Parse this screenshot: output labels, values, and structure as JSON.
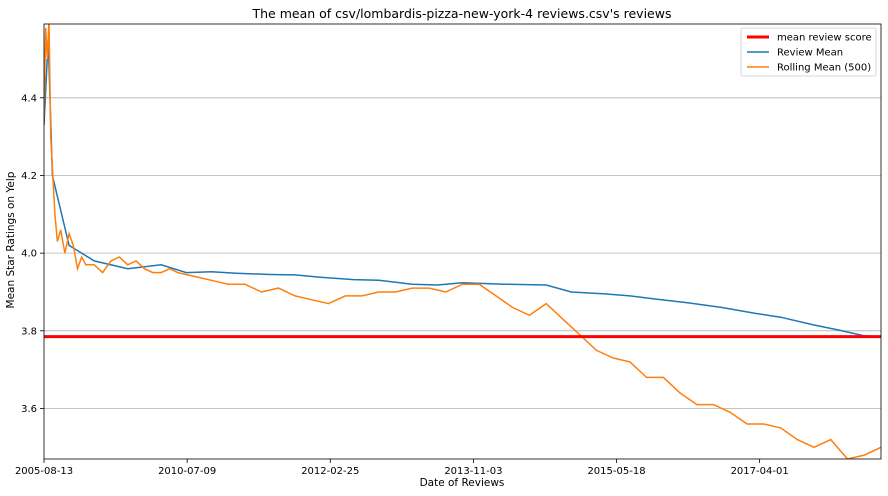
{
  "chart_data": {
    "type": "line",
    "title": "The mean of csv/lombardis-pizza-new-york-4 reviews.csv's reviews",
    "xlabel": "Date of Reviews",
    "ylabel": "Mean Star Ratings on Yelp",
    "x_tick_labels": [
      "2005-08-13",
      "2010-07-09",
      "2012-02-25",
      "2013-11-03",
      "2015-05-18",
      "2017-04-01"
    ],
    "y_ticks": [
      3.6,
      3.8,
      4.0,
      4.2,
      4.4
    ],
    "ylim": [
      3.47,
      4.59
    ],
    "grid": "horizontal",
    "legend_position": "top-right",
    "mean_review_score": 3.785,
    "series": [
      {
        "name": "mean review score",
        "color": "#ff0000",
        "style": "hline",
        "value": 3.785
      },
      {
        "name": "Review Mean",
        "color": "#1f77b4",
        "x": [
          0.0,
          0.005,
          0.01,
          0.03,
          0.06,
          0.1,
          0.14,
          0.17,
          0.2,
          0.23,
          0.27,
          0.3,
          0.33,
          0.37,
          0.4,
          0.44,
          0.47,
          0.5,
          0.55,
          0.6,
          0.63,
          0.67,
          0.7,
          0.73,
          0.77,
          0.81,
          0.85,
          0.88,
          0.92,
          0.95,
          0.98,
          1.0
        ],
        "values": [
          4.33,
          4.55,
          4.2,
          4.02,
          3.98,
          3.96,
          3.97,
          3.95,
          3.952,
          3.948,
          3.945,
          3.944,
          3.938,
          3.932,
          3.93,
          3.92,
          3.918,
          3.924,
          3.92,
          3.918,
          3.9,
          3.895,
          3.89,
          3.882,
          3.872,
          3.86,
          3.845,
          3.835,
          3.815,
          3.802,
          3.787,
          3.785
        ]
      },
      {
        "name": "Rolling Mean (500)",
        "color": "#ff7f0e",
        "x": [
          0.0,
          0.002,
          0.004,
          0.006,
          0.008,
          0.01,
          0.013,
          0.016,
          0.02,
          0.025,
          0.03,
          0.035,
          0.04,
          0.045,
          0.05,
          0.06,
          0.07,
          0.08,
          0.09,
          0.1,
          0.11,
          0.12,
          0.13,
          0.14,
          0.15,
          0.16,
          0.18,
          0.2,
          0.22,
          0.24,
          0.26,
          0.28,
          0.3,
          0.32,
          0.34,
          0.36,
          0.38,
          0.4,
          0.42,
          0.44,
          0.46,
          0.48,
          0.5,
          0.52,
          0.54,
          0.56,
          0.58,
          0.6,
          0.62,
          0.64,
          0.66,
          0.68,
          0.7,
          0.72,
          0.74,
          0.76,
          0.78,
          0.8,
          0.82,
          0.84,
          0.86,
          0.88,
          0.9,
          0.92,
          0.94,
          0.96,
          0.98,
          1.0
        ],
        "values": [
          4.35,
          4.58,
          4.5,
          4.6,
          4.3,
          4.22,
          4.1,
          4.03,
          4.06,
          4.0,
          4.05,
          4.02,
          3.96,
          3.99,
          3.97,
          3.97,
          3.95,
          3.98,
          3.99,
          3.97,
          3.98,
          3.96,
          3.95,
          3.95,
          3.96,
          3.95,
          3.94,
          3.93,
          3.92,
          3.92,
          3.9,
          3.91,
          3.89,
          3.88,
          3.87,
          3.89,
          3.89,
          3.9,
          3.9,
          3.91,
          3.91,
          3.9,
          3.92,
          3.92,
          3.89,
          3.86,
          3.84,
          3.87,
          3.83,
          3.79,
          3.75,
          3.73,
          3.72,
          3.68,
          3.68,
          3.64,
          3.61,
          3.61,
          3.59,
          3.56,
          3.56,
          3.55,
          3.52,
          3.5,
          3.52,
          3.47,
          3.48,
          3.5
        ]
      }
    ]
  }
}
